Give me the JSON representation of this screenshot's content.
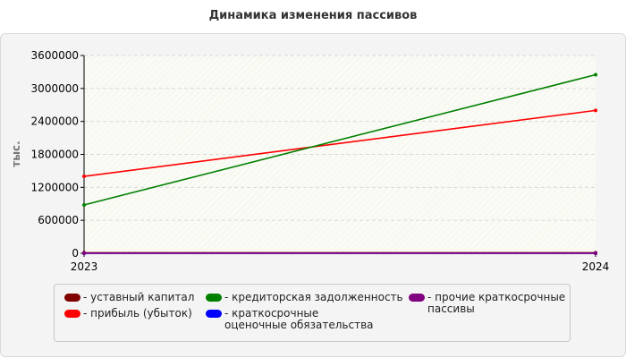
{
  "chart_data": {
    "type": "line",
    "title": "Динамика изменения пассивов",
    "xlabel": "",
    "ylabel": "тыс.",
    "categories": [
      "2023",
      "2024"
    ],
    "ylim": [
      0,
      3600000
    ],
    "yticks": [
      0,
      600000,
      1200000,
      1800000,
      2400000,
      3000000,
      3600000
    ],
    "ytick_labels": [
      "0",
      "600000",
      "1200000",
      "1800000",
      "2400000",
      "3000000",
      "3600000"
    ],
    "grid": true,
    "legend_position": "bottom",
    "series": [
      {
        "name": "- уставный капитал",
        "color": "#800000",
        "values": [
          10000,
          10000
        ]
      },
      {
        "name": "- прибыль (убыток)",
        "color": "#ff0000",
        "values": [
          1400000,
          2600000
        ]
      },
      {
        "name": "- кредиторская задолженность",
        "color": "#008000",
        "values": [
          880000,
          3250000
        ]
      },
      {
        "name": "- краткосрочные оценочные обязательства",
        "color": "#0000ff",
        "values": [
          0,
          0
        ]
      },
      {
        "name": "- прочие краткосрочные пассивы",
        "color": "#800080",
        "values": [
          0,
          0
        ]
      }
    ]
  }
}
